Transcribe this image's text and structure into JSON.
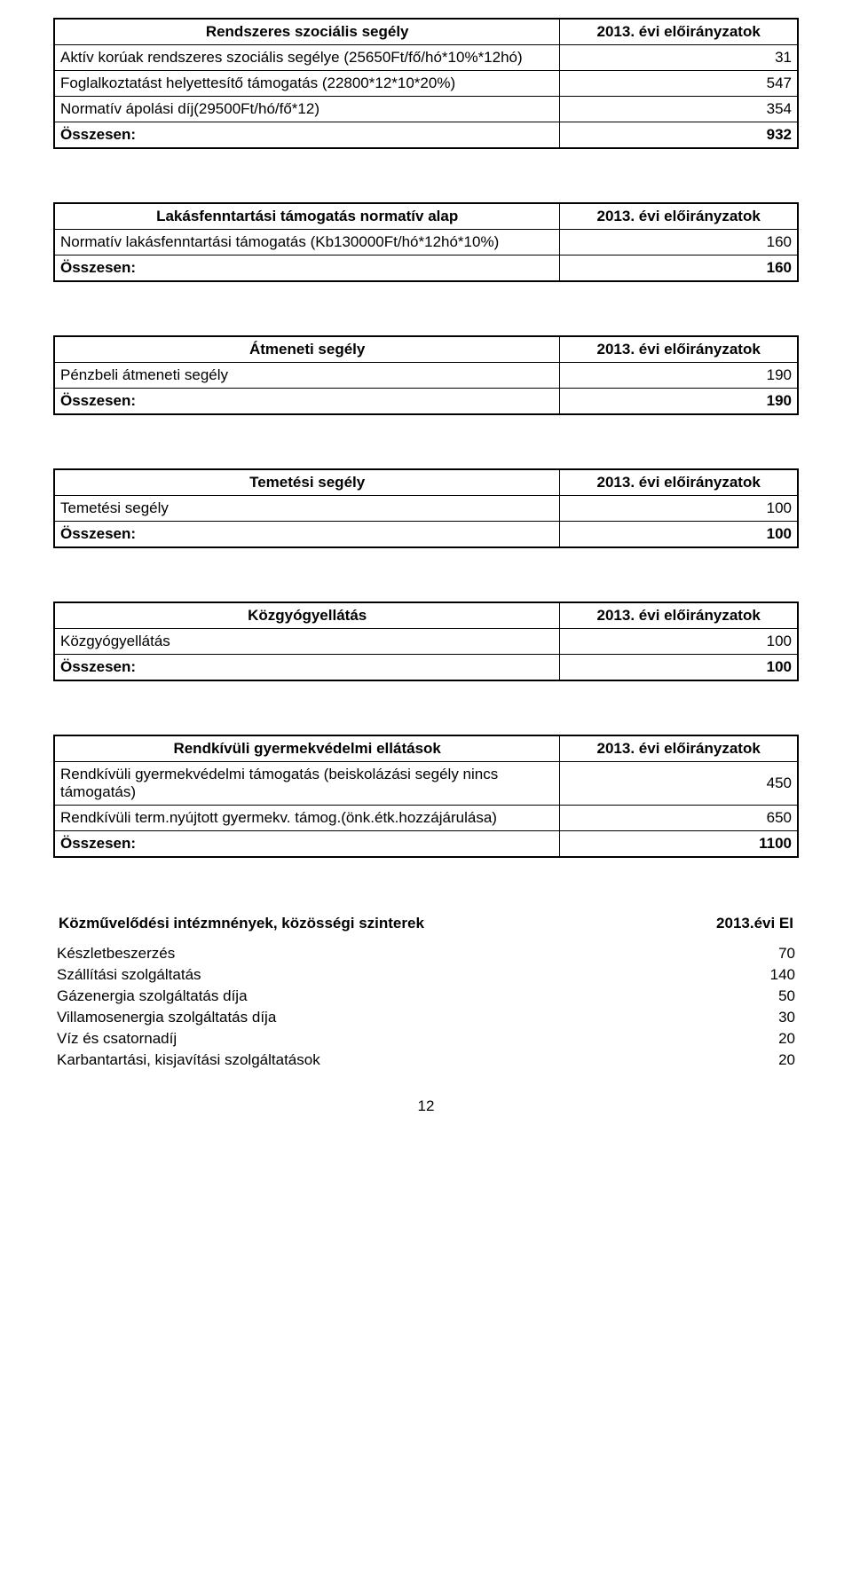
{
  "tables": [
    {
      "title": "Rendszeres szociális segély",
      "head_right": "2013. évi előirányzatok",
      "rows": [
        {
          "label": "Aktív korúak rendszeres szociális segélye (25650Ft/fő/hó*10%*12hó)",
          "value": "31"
        },
        {
          "label": "Foglalkoztatást helyettesítő támogatás (22800*12*10*20%)",
          "value": "547"
        },
        {
          "label": "Normatív ápolási díj(29500Ft/hó/fő*12)",
          "value": "354"
        }
      ],
      "total_label": "Összesen:",
      "total_value": "932"
    },
    {
      "title": "Lakásfenntartási támogatás normatív alap",
      "head_right": "2013. évi előirányzatok",
      "rows": [
        {
          "label": "Normatív lakásfenntartási támogatás (Kb130000Ft/hó*12hó*10%)",
          "value": "160"
        }
      ],
      "total_label": "Összesen:",
      "total_value": "160"
    },
    {
      "title": "Átmeneti segély",
      "head_right": "2013. évi előirányzatok",
      "rows": [
        {
          "label": "Pénzbeli átmeneti  segély",
          "value": "190"
        }
      ],
      "total_label": "Összesen:",
      "total_value": "190"
    },
    {
      "title": "Temetési segély",
      "head_right": "2013. évi előirányzatok",
      "rows": [
        {
          "label": "Temetési segély",
          "value": "100"
        }
      ],
      "total_label": "Összesen:",
      "total_value": "100"
    },
    {
      "title": "Közgyógyellátás",
      "head_right": "2013. évi előirányzatok",
      "rows": [
        {
          "label": "Közgyógyellátás",
          "value": "100"
        }
      ],
      "total_label": "Összesen:",
      "total_value": "100"
    },
    {
      "title": "Rendkívüli gyermekvédelmi ellátások",
      "head_right": "2013. évi előirányzatok",
      "rows": [
        {
          "label": "Rendkívüli gyermekvédelmi támogatás (beiskolázási segély nincs támogatás)",
          "value": "450"
        },
        {
          "label": "Rendkívüli term.nyújtott gyermekv. támog.(önk.étk.hozzájárulása)",
          "value": "650"
        }
      ],
      "total_label": "Összesen:",
      "total_value": "1100"
    }
  ],
  "last": {
    "title": "Közművelődési intézmnények, közösségi szinterek",
    "head_right": "2013.évi EI",
    "rows": [
      {
        "label": "Készletbeszerzés",
        "value": "70"
      },
      {
        "label": "Szállítási szolgáltatás",
        "value": "140"
      },
      {
        "label": "Gázenergia szolgáltatás díja",
        "value": "50"
      },
      {
        "label": "Villamosenergia szolgáltatás díja",
        "value": "30"
      },
      {
        "label": "Víz és csatornadíj",
        "value": "20"
      },
      {
        "label": "Karbantartási, kisjavítási szolgáltatások",
        "value": "20"
      }
    ]
  },
  "page_number": "12"
}
